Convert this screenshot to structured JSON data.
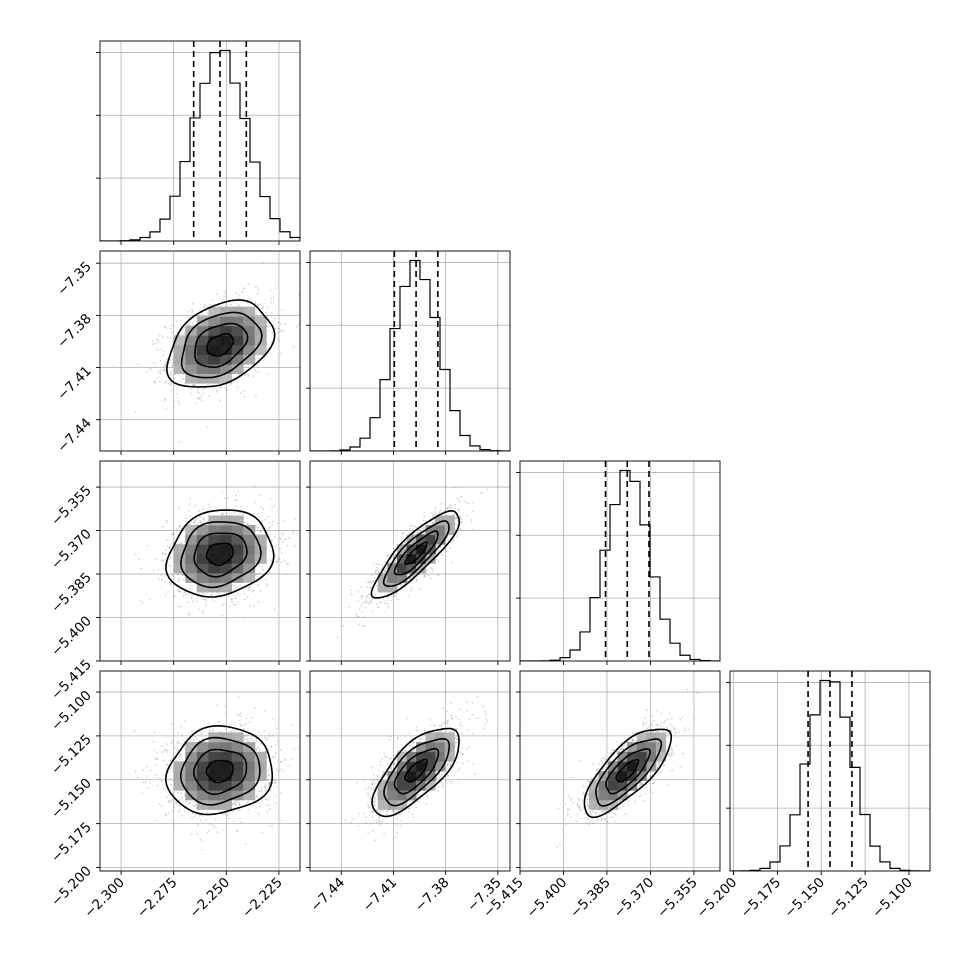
{
  "chart_data": {
    "type": "corner",
    "parameters": [
      {
        "mean": -2.253,
        "sigma": 0.0125,
        "axis_min": -2.31,
        "axis_max": -2.215,
        "ticks": [
          -2.3,
          -2.275,
          -2.25,
          -2.225
        ],
        "tick_labels": [
          "−2.300",
          "−2.275",
          "−2.250",
          "−2.225"
        ],
        "quantiles": [
          -2.2655,
          -2.253,
          -2.2405
        ]
      },
      {
        "mean": -7.397,
        "sigma": 0.0125,
        "axis_min": -7.458,
        "axis_max": -7.343,
        "ticks": [
          -7.44,
          -7.41,
          -7.38,
          -7.35
        ],
        "tick_labels": [
          "−7.44",
          "−7.41",
          "−7.38",
          "−7.35"
        ],
        "quantiles": [
          -7.4095,
          -7.397,
          -7.3845
        ]
      },
      {
        "mean": -5.378,
        "sigma": 0.0075,
        "axis_min": -5.415,
        "axis_max": -5.346,
        "ticks": [
          -5.415,
          -5.4,
          -5.385,
          -5.37,
          -5.355
        ],
        "tick_labels": [
          "−5.415",
          "−5.400",
          "−5.385",
          "−5.370",
          "−5.355"
        ],
        "quantiles": [
          -5.3855,
          -5.378,
          -5.3705
        ]
      },
      {
        "mean": -5.145,
        "sigma": 0.0125,
        "axis_min": -5.202,
        "axis_max": -5.088,
        "ticks": [
          -5.2,
          -5.175,
          -5.15,
          -5.125,
          -5.1
        ],
        "tick_labels": [
          "−5.200",
          "−5.175",
          "−5.150",
          "−5.125",
          "−5.100"
        ],
        "quantiles": [
          -5.1575,
          -5.145,
          -5.1325
        ]
      }
    ],
    "correlations": [
      [
        1.0,
        0.35,
        0.15,
        0.1
      ],
      [
        0.35,
        1.0,
        0.85,
        0.7
      ],
      [
        0.15,
        0.85,
        1.0,
        0.75
      ],
      [
        0.1,
        0.7,
        0.75,
        1.0
      ]
    ],
    "histogram_bins": 20,
    "contour_levels_sigma": [
      0.5,
      1.0,
      1.5,
      2.0
    ],
    "grid": true,
    "colors": {
      "frame": "#000000",
      "grid": "#b0b0b0",
      "samples": "#8a8a8a",
      "density": "#000000"
    }
  }
}
